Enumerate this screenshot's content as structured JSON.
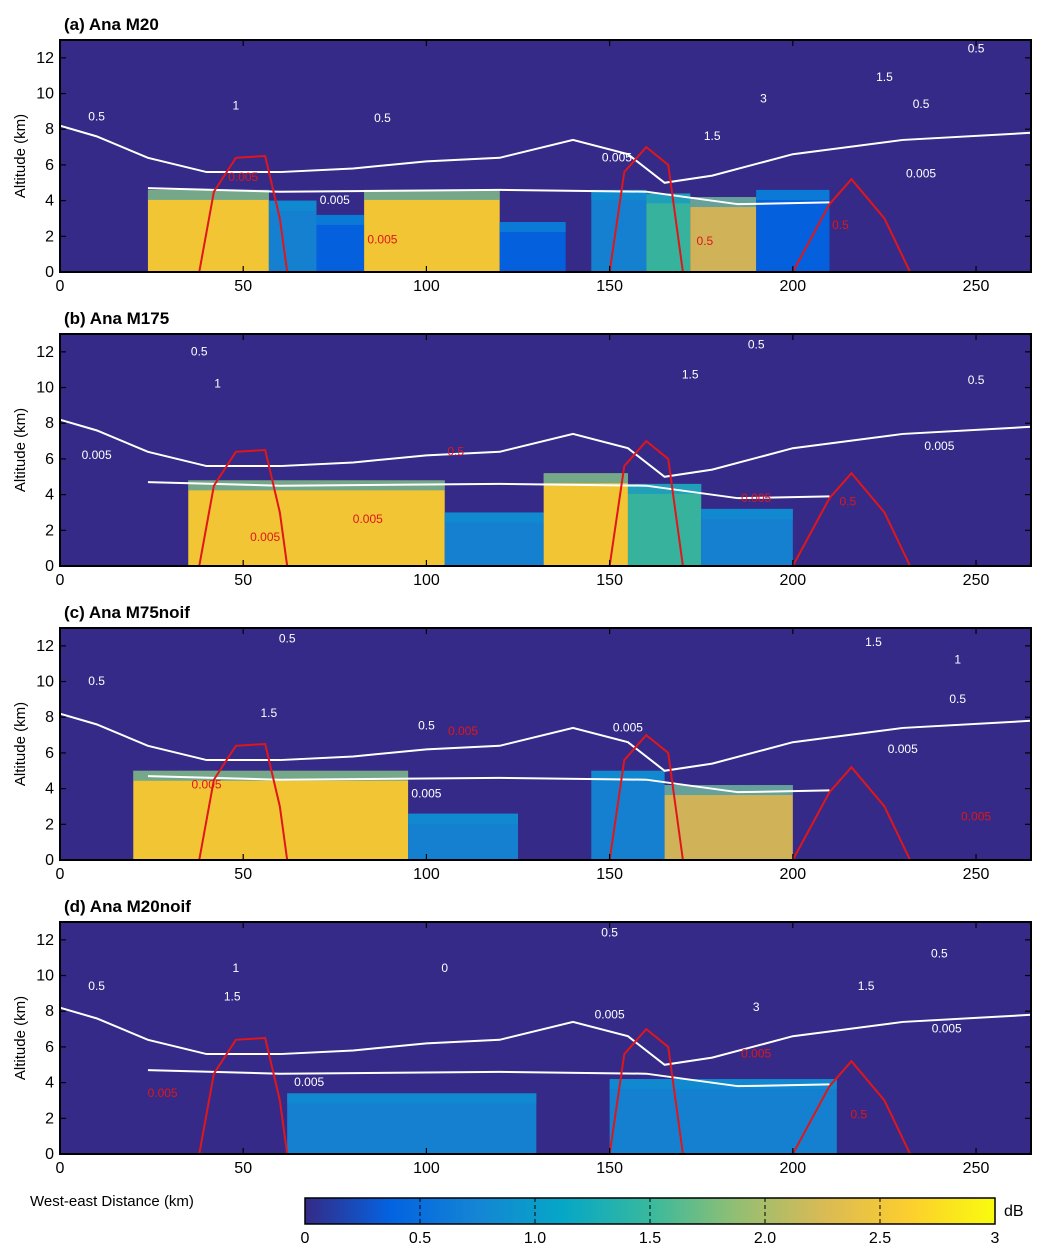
{
  "chart_data": {
    "type": "heatmap",
    "colorbar": {
      "unit": "dB",
      "min": 0,
      "max": 3,
      "ticks": [
        "0",
        "0.5",
        "1.0",
        "1.5",
        "2.0",
        "2.5",
        "3"
      ],
      "colors": [
        "#352a87",
        "#0363e1",
        "#1485d4",
        "#06a7c6",
        "#38b99e",
        "#92bf73",
        "#d9ba56",
        "#fcce2e",
        "#f9fb0e"
      ]
    },
    "xlabel": "West-east Distance (km)",
    "ylabel": "Altitude (km)",
    "xlim": [
      0,
      265
    ],
    "ylim": [
      0,
      13
    ],
    "xticks": [
      "0",
      "50",
      "100",
      "150",
      "200",
      "250"
    ],
    "yticks": [
      "0",
      "2",
      "4",
      "6",
      "8",
      "10",
      "12"
    ],
    "grid": false,
    "contour_colors": {
      "white": "#ffffff",
      "red": "#e0161a",
      "background": "#352a87"
    },
    "panels": [
      {
        "title": "(a) Ana M20",
        "fields": [
          {
            "x0": 24,
            "x1": 57,
            "top": 4.6,
            "fill": "#fcce2e"
          },
          {
            "x0": 57,
            "x1": 70,
            "top": 4.0,
            "fill": "#1485d4"
          },
          {
            "x0": 70,
            "x1": 83,
            "top": 3.2,
            "fill": "#0363e1"
          },
          {
            "x0": 83,
            "x1": 120,
            "top": 4.6,
            "fill": "#fcce2e"
          },
          {
            "x0": 120,
            "x1": 138,
            "top": 2.8,
            "fill": "#0363e1"
          },
          {
            "x0": 145,
            "x1": 160,
            "top": 4.6,
            "fill": "#1485d4"
          },
          {
            "x0": 160,
            "x1": 172,
            "top": 4.4,
            "fill": "#38b99e"
          },
          {
            "x0": 172,
            "x1": 190,
            "top": 4.2,
            "fill": "#d9ba56"
          },
          {
            "x0": 190,
            "x1": 210,
            "top": 4.6,
            "fill": "#0363e1"
          }
        ],
        "contour_labels": [
          {
            "text": "0.5",
            "x": 10,
            "y": 8.5,
            "color": "white"
          },
          {
            "text": "1",
            "x": 48,
            "y": 9.1,
            "color": "white"
          },
          {
            "text": "0.5",
            "x": 88,
            "y": 8.4,
            "color": "white"
          },
          {
            "text": "0.005",
            "x": 75,
            "y": 3.8,
            "color": "white"
          },
          {
            "text": "0.005",
            "x": 152,
            "y": 6.2,
            "color": "white"
          },
          {
            "text": "0.5",
            "x": 250,
            "y": 12.3,
            "color": "white"
          },
          {
            "text": "0.5",
            "x": 235,
            "y": 9.2,
            "color": "white"
          },
          {
            "text": "0.005",
            "x": 235,
            "y": 5.3,
            "color": "white"
          },
          {
            "text": "1.5",
            "x": 225,
            "y": 10.7,
            "color": "white"
          },
          {
            "text": "3",
            "x": 192,
            "y": 9.5,
            "color": "white"
          },
          {
            "text": "1.5",
            "x": 178,
            "y": 7.4,
            "color": "white"
          },
          {
            "text": "0.005",
            "x": 50,
            "y": 5.1,
            "color": "red"
          },
          {
            "text": "0.005",
            "x": 88,
            "y": 1.6,
            "color": "red"
          },
          {
            "text": "0.5",
            "x": 176,
            "y": 1.5,
            "color": "red"
          },
          {
            "text": "0.5",
            "x": 213,
            "y": 2.4,
            "color": "red"
          }
        ]
      },
      {
        "title": "(b) Ana M175",
        "fields": [
          {
            "x0": 35,
            "x1": 105,
            "top": 4.8,
            "fill": "#fcce2e"
          },
          {
            "x0": 105,
            "x1": 132,
            "top": 3.0,
            "fill": "#1485d4"
          },
          {
            "x0": 132,
            "x1": 155,
            "top": 5.2,
            "fill": "#fcce2e"
          },
          {
            "x0": 155,
            "x1": 175,
            "top": 4.6,
            "fill": "#38b99e"
          },
          {
            "x0": 175,
            "x1": 200,
            "top": 3.2,
            "fill": "#1485d4"
          }
        ],
        "contour_labels": [
          {
            "text": "0.5",
            "x": 38,
            "y": 11.8,
            "color": "white"
          },
          {
            "text": "1",
            "x": 43,
            "y": 10.0,
            "color": "white"
          },
          {
            "text": "0.005",
            "x": 10,
            "y": 6.0,
            "color": "white"
          },
          {
            "text": "0.5",
            "x": 190,
            "y": 12.2,
            "color": "white"
          },
          {
            "text": "0.5",
            "x": 250,
            "y": 10.2,
            "color": "white"
          },
          {
            "text": "0.005",
            "x": 240,
            "y": 6.5,
            "color": "white"
          },
          {
            "text": "1.5",
            "x": 172,
            "y": 10.5,
            "color": "white"
          },
          {
            "text": "0.5",
            "x": 108,
            "y": 6.2,
            "color": "red"
          },
          {
            "text": "0.005",
            "x": 56,
            "y": 1.4,
            "color": "red"
          },
          {
            "text": "0.005",
            "x": 84,
            "y": 2.4,
            "color": "red"
          },
          {
            "text": "0.005",
            "x": 190,
            "y": 3.6,
            "color": "red"
          },
          {
            "text": "0.5",
            "x": 215,
            "y": 3.4,
            "color": "red"
          }
        ]
      },
      {
        "title": "(c) Ana M75noif",
        "fields": [
          {
            "x0": 20,
            "x1": 95,
            "top": 5.0,
            "fill": "#fcce2e"
          },
          {
            "x0": 95,
            "x1": 125,
            "top": 2.6,
            "fill": "#1485d4"
          },
          {
            "x0": 145,
            "x1": 165,
            "top": 5.0,
            "fill": "#1485d4"
          },
          {
            "x0": 165,
            "x1": 200,
            "top": 4.2,
            "fill": "#d9ba56"
          }
        ],
        "contour_labels": [
          {
            "text": "0.5",
            "x": 62,
            "y": 12.2,
            "color": "white"
          },
          {
            "text": "0.5",
            "x": 10,
            "y": 9.8,
            "color": "white"
          },
          {
            "text": "1.5",
            "x": 57,
            "y": 8.0,
            "color": "white"
          },
          {
            "text": "0.5",
            "x": 100,
            "y": 7.3,
            "color": "white"
          },
          {
            "text": "0.005",
            "x": 100,
            "y": 3.5,
            "color": "white"
          },
          {
            "text": "0.005",
            "x": 155,
            "y": 7.2,
            "color": "white"
          },
          {
            "text": "0.005",
            "x": 230,
            "y": 6.0,
            "color": "white"
          },
          {
            "text": "0.5",
            "x": 245,
            "y": 8.8,
            "color": "white"
          },
          {
            "text": "1",
            "x": 245,
            "y": 11.0,
            "color": "white"
          },
          {
            "text": "1.5",
            "x": 222,
            "y": 12.0,
            "color": "white"
          },
          {
            "text": "0.005",
            "x": 110,
            "y": 7.0,
            "color": "red"
          },
          {
            "text": "0.005",
            "x": 40,
            "y": 4.0,
            "color": "red"
          },
          {
            "text": "0.005",
            "x": 250,
            "y": 2.2,
            "color": "red"
          }
        ]
      },
      {
        "title": "(d) Ana M20noif",
        "fields": [
          {
            "x0": 62,
            "x1": 130,
            "top": 3.4,
            "fill": "#1485d4"
          },
          {
            "x0": 150,
            "x1": 212,
            "top": 4.2,
            "fill": "#1485d4"
          }
        ],
        "contour_labels": [
          {
            "text": "0.5",
            "x": 10,
            "y": 9.2,
            "color": "white"
          },
          {
            "text": "1",
            "x": 48,
            "y": 10.2,
            "color": "white"
          },
          {
            "text": "1.5",
            "x": 47,
            "y": 8.6,
            "color": "white"
          },
          {
            "text": "0",
            "x": 105,
            "y": 10.2,
            "color": "white"
          },
          {
            "text": "0.005",
            "x": 68,
            "y": 3.8,
            "color": "white"
          },
          {
            "text": "0.5",
            "x": 150,
            "y": 12.2,
            "color": "white"
          },
          {
            "text": "0.005",
            "x": 150,
            "y": 7.6,
            "color": "white"
          },
          {
            "text": "1.5",
            "x": 220,
            "y": 9.2,
            "color": "white"
          },
          {
            "text": "0.5",
            "x": 240,
            "y": 11.0,
            "color": "white"
          },
          {
            "text": "0.005",
            "x": 242,
            "y": 6.8,
            "color": "white"
          },
          {
            "text": "3",
            "x": 190,
            "y": 8.0,
            "color": "white"
          },
          {
            "text": "0.005",
            "x": 28,
            "y": 3.2,
            "color": "red"
          },
          {
            "text": "0.005",
            "x": 190,
            "y": 5.4,
            "color": "red"
          },
          {
            "text": "0.5",
            "x": 218,
            "y": 2.0,
            "color": "red"
          }
        ]
      }
    ]
  }
}
